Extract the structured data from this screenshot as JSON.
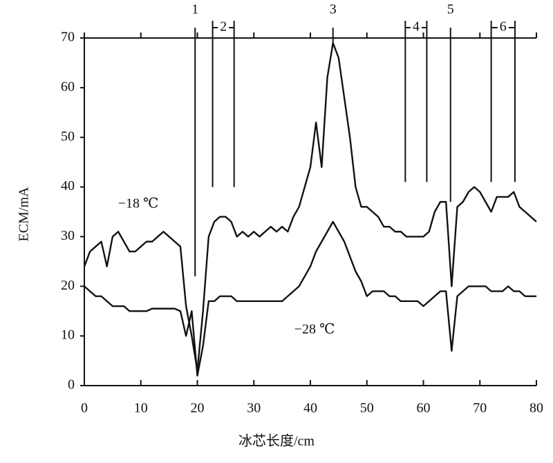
{
  "chart_data": {
    "type": "line",
    "x_label": "冰芯长度/cm",
    "y_label": "ECM/mA",
    "x": [
      0,
      1,
      2,
      3,
      4,
      5,
      6,
      7,
      8,
      9,
      10,
      11,
      12,
      13,
      14,
      15,
      16,
      17,
      18,
      19,
      20,
      21,
      22,
      23,
      24,
      25,
      26,
      27,
      28,
      29,
      30,
      31,
      32,
      33,
      34,
      35,
      36,
      37,
      38,
      39,
      40,
      41,
      42,
      43,
      44,
      45,
      46,
      47,
      48,
      49,
      50,
      51,
      52,
      53,
      54,
      55,
      56,
      57,
      58,
      59,
      60,
      61,
      62,
      63,
      64,
      65,
      66,
      67,
      68,
      69,
      70,
      71,
      72,
      73,
      74,
      75,
      76,
      77,
      78,
      79,
      80
    ],
    "series": [
      {
        "name": "−18 ℃",
        "color": "#111111",
        "values": [
          24,
          27,
          28,
          29,
          24,
          30,
          31,
          29,
          27,
          27,
          28,
          29,
          29,
          30,
          31,
          30,
          29,
          28,
          16,
          10,
          3,
          15,
          30,
          33,
          34,
          34,
          33,
          30,
          31,
          30,
          31,
          30,
          31,
          32,
          31,
          32,
          31,
          34,
          36,
          40,
          44,
          53,
          44,
          62,
          69,
          66,
          58,
          50,
          40,
          36,
          36,
          35,
          34,
          32,
          32,
          31,
          31,
          30,
          30,
          30,
          30,
          31,
          35,
          37,
          37,
          20,
          36,
          37,
          39,
          40,
          39,
          37,
          35,
          38,
          38,
          38,
          39,
          36,
          35,
          34,
          33
        ]
      },
      {
        "name": "−28 ℃",
        "color": "#111111",
        "values": [
          20,
          19,
          18,
          18,
          17,
          16,
          16,
          16,
          15,
          15,
          15,
          15,
          15.5,
          15.5,
          15.5,
          15.5,
          15.5,
          15,
          10,
          15,
          2,
          8,
          17,
          17,
          18,
          18,
          18,
          17,
          17,
          17,
          17,
          17,
          17,
          17,
          17,
          17,
          18,
          19,
          20,
          22,
          24,
          27,
          29,
          31,
          33,
          31,
          29,
          26,
          23,
          21,
          18,
          19,
          19,
          19,
          18,
          18,
          17,
          17,
          17,
          17,
          16,
          17,
          18,
          19,
          19,
          7,
          18,
          19,
          20,
          20,
          20,
          20,
          19,
          19,
          19,
          20,
          19,
          19,
          18,
          18,
          18
        ]
      }
    ],
    "markers": [
      {
        "label": "1",
        "x": [
          19.6
        ],
        "y_end": 22
      },
      {
        "label": "2",
        "x": [
          22.7,
          26.5
        ],
        "y_end": 40
      },
      {
        "label": "3",
        "x": [
          44
        ],
        "y_end": 69
      },
      {
        "label": "4",
        "x": [
          56.8,
          60.6
        ],
        "y_end": 41
      },
      {
        "label": "5",
        "x": [
          64.8
        ],
        "y_end": 37
      },
      {
        "label": "6",
        "x": [
          72,
          76.2
        ],
        "y_end": 41
      }
    ],
    "xlim": [
      0,
      80
    ],
    "ylim": [
      0,
      70
    ],
    "xticks": [
      0,
      10,
      20,
      30,
      40,
      50,
      60,
      70,
      80
    ],
    "yticks": [
      0,
      10,
      20,
      30,
      40,
      50,
      60,
      70
    ]
  }
}
